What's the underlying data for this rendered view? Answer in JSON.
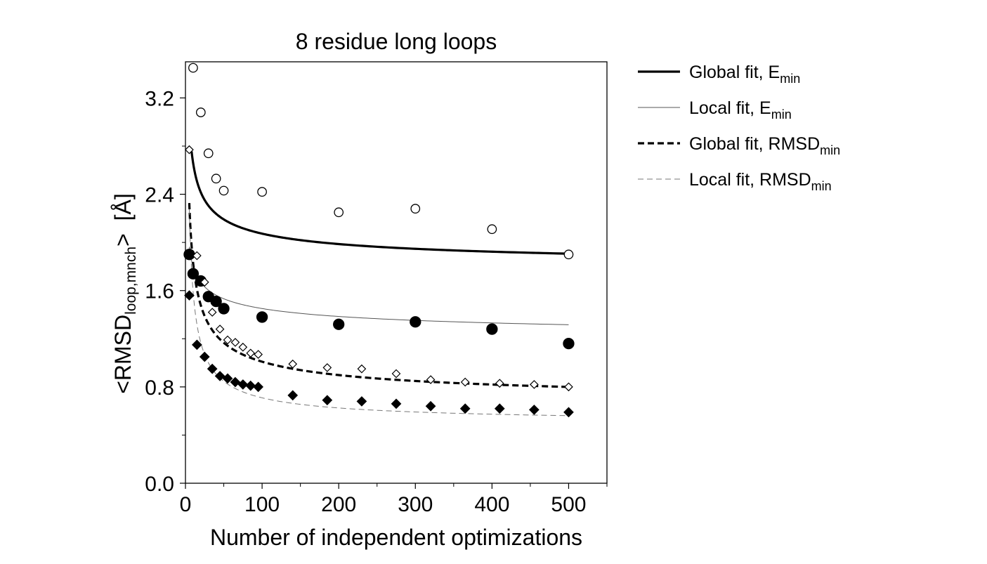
{
  "chart_data": {
    "type": "scatter",
    "title": "8 residue long loops",
    "xlabel": "Number of independent optimizations",
    "ylabel": {
      "prefix": "<RMSD",
      "subscript": "loop,mnch",
      "suffix": ">",
      "unit": "[Å]"
    },
    "xlim": [
      0,
      550
    ],
    "ylim": [
      0.0,
      3.5
    ],
    "x_ticks": [
      0,
      100,
      200,
      300,
      400,
      500
    ],
    "x_tick_labels": [
      "0",
      "100",
      "200",
      "300",
      "400",
      "500"
    ],
    "x_minor_ticks": [
      50,
      150,
      250,
      350,
      450,
      550
    ],
    "y_ticks": [
      0.0,
      0.8,
      1.6,
      2.4,
      3.2
    ],
    "y_tick_labels": [
      "0.0",
      "0.8",
      "1.6",
      "2.4",
      "3.2"
    ],
    "y_minor_ticks": [
      0.4,
      1.2,
      2.0,
      2.8
    ],
    "grid": false,
    "legend": {
      "position": "outside-right",
      "entries": [
        {
          "label": "Global fit, E",
          "sub": "min",
          "style": "solid-thick"
        },
        {
          "label": "Local fit, E",
          "sub": "min",
          "style": "solid-thin"
        },
        {
          "label": "Global fit, RMSD",
          "sub": "min",
          "style": "dashed-thick"
        },
        {
          "label": "Local fit, RMSD",
          "sub": "min",
          "style": "dashed-thin"
        }
      ]
    },
    "series": [
      {
        "name": "E_min (global)",
        "marker": "circle-open",
        "x": [
          10,
          20,
          30,
          40,
          50,
          100,
          200,
          300,
          400,
          500
        ],
        "y": [
          3.45,
          3.08,
          2.74,
          2.53,
          2.43,
          2.42,
          2.25,
          2.28,
          2.11,
          1.9
        ]
      },
      {
        "name": "E_min (local)",
        "marker": "circle-filled",
        "x": [
          5,
          10,
          20,
          30,
          40,
          50,
          100,
          200,
          300,
          400,
          500
        ],
        "y": [
          1.9,
          1.74,
          1.68,
          1.55,
          1.51,
          1.45,
          1.38,
          1.32,
          1.34,
          1.28,
          1.16
        ]
      },
      {
        "name": "RMSD_min (global)",
        "marker": "diamond-open",
        "x": [
          5,
          15,
          25,
          35,
          45,
          55,
          65,
          75,
          85,
          95,
          140,
          185,
          230,
          275,
          320,
          365,
          410,
          455,
          500
        ],
        "y": [
          2.77,
          1.89,
          1.67,
          1.42,
          1.28,
          1.19,
          1.17,
          1.13,
          1.08,
          1.07,
          0.99,
          0.96,
          0.95,
          0.91,
          0.86,
          0.84,
          0.83,
          0.82,
          0.8
        ]
      },
      {
        "name": "RMSD_min (local)",
        "marker": "diamond-filled",
        "x": [
          5,
          15,
          25,
          35,
          45,
          55,
          65,
          75,
          85,
          95,
          140,
          185,
          230,
          275,
          320,
          365,
          410,
          455,
          500
        ],
        "y": [
          1.56,
          1.15,
          1.05,
          0.95,
          0.89,
          0.87,
          0.84,
          0.82,
          0.81,
          0.8,
          0.73,
          0.69,
          0.68,
          0.66,
          0.64,
          0.62,
          0.62,
          0.61,
          0.59
        ]
      }
    ],
    "fits": [
      {
        "name": "Global fit, E_min",
        "style": "solid-thick",
        "x_start": 8,
        "x_end": 500,
        "a": 1.75,
        "b": 0.91,
        "p": 0.45
      },
      {
        "name": "Local fit, E_min",
        "style": "solid-thin",
        "x_start": 5,
        "x_end": 500,
        "a": 1.1,
        "b": 0.7,
        "p": 0.3
      },
      {
        "name": "Global fit, RMSD_min",
        "style": "dashed-thick",
        "x_start": 5,
        "x_end": 500,
        "a": 0.63,
        "b": 1.2,
        "p": 0.5
      },
      {
        "name": "Local fit, RMSD_min",
        "style": "dashed-thin",
        "x_start": 5,
        "x_end": 500,
        "a": 0.49,
        "b": 1.1,
        "p": 0.7
      }
    ]
  }
}
